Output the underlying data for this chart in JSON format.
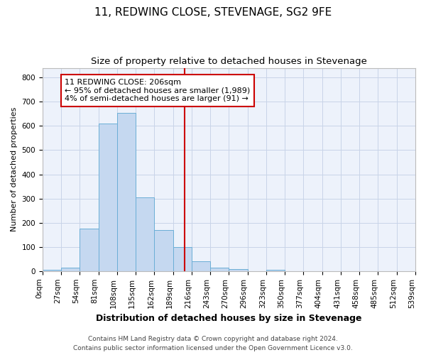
{
  "title": "11, REDWING CLOSE, STEVENAGE, SG2 9FE",
  "subtitle": "Size of property relative to detached houses in Stevenage",
  "xlabel": "Distribution of detached houses by size in Stevenage",
  "ylabel": "Number of detached properties",
  "bar_values": [
    5,
    13,
    175,
    610,
    655,
    305,
    170,
    100,
    40,
    15,
    7,
    0,
    5,
    0,
    0,
    0,
    0,
    0,
    0,
    0
  ],
  "categories": [
    "0sqm",
    "27sqm",
    "54sqm",
    "81sqm",
    "108sqm",
    "135sqm",
    "162sqm",
    "189sqm",
    "216sqm",
    "243sqm",
    "270sqm",
    "296sqm",
    "323sqm",
    "350sqm",
    "377sqm",
    "404sqm",
    "431sqm",
    "458sqm",
    "485sqm",
    "512sqm",
    "539sqm"
  ],
  "bar_color": "#c5d8f0",
  "bar_edge_color": "#6baed6",
  "vline_color": "#cc0000",
  "annotation_text": "11 REDWING CLOSE: 206sqm\n← 95% of detached houses are smaller (1,989)\n4% of semi-detached houses are larger (91) →",
  "annotation_box_facecolor": "#ffffff",
  "annotation_box_edgecolor": "#cc0000",
  "ylim": [
    0,
    840
  ],
  "yticks": [
    0,
    100,
    200,
    300,
    400,
    500,
    600,
    700,
    800
  ],
  "grid_color": "#c8d4e8",
  "background_color": "#edf2fb",
  "footer_line1": "Contains HM Land Registry data © Crown copyright and database right 2024.",
  "footer_line2": "Contains public sector information licensed under the Open Government Licence v3.0.",
  "title_fontsize": 11,
  "subtitle_fontsize": 9.5,
  "xlabel_fontsize": 9,
  "ylabel_fontsize": 8,
  "tick_fontsize": 7.5,
  "footer_fontsize": 6.5,
  "annotation_fontsize": 8
}
